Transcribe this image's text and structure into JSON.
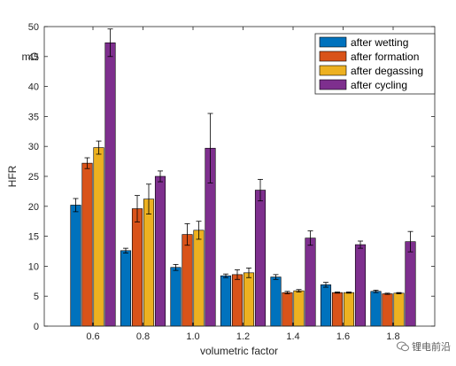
{
  "chart_data": {
    "type": "bar",
    "xlabel": "volumetric factor",
    "ylabel": "HFR",
    "unit_label": "mΩ",
    "categories": [
      "0.6",
      "0.8",
      "1.0",
      "1.2",
      "1.4",
      "1.6",
      "1.8"
    ],
    "ylim": [
      0,
      50
    ],
    "yticks": [
      0,
      5,
      10,
      15,
      20,
      25,
      30,
      35,
      40,
      45,
      50
    ],
    "grid": false,
    "legend_position": "top-right",
    "series": [
      {
        "name": "after wetting",
        "color": "#0072bd",
        "values": [
          20.2,
          12.6,
          9.8,
          8.4,
          8.2,
          6.9,
          5.8
        ],
        "errors": [
          1.1,
          0.4,
          0.5,
          0.3,
          0.4,
          0.4,
          0.2
        ]
      },
      {
        "name": "after formation",
        "color": "#d95319",
        "values": [
          27.2,
          19.6,
          15.3,
          8.6,
          5.6,
          5.6,
          5.4
        ],
        "errors": [
          0.9,
          2.2,
          1.8,
          0.8,
          0.2,
          0.1,
          0.1
        ]
      },
      {
        "name": "after degassing",
        "color": "#edb120",
        "values": [
          29.8,
          21.2,
          16.0,
          8.9,
          5.9,
          5.6,
          5.5
        ],
        "errors": [
          1.1,
          2.5,
          1.5,
          0.8,
          0.2,
          0.1,
          0.1
        ]
      },
      {
        "name": "after cycling",
        "color": "#7e2f8e",
        "values": [
          47.3,
          25.0,
          29.7,
          22.7,
          14.7,
          13.6,
          14.1
        ],
        "errors": [
          2.3,
          0.9,
          5.8,
          1.8,
          1.2,
          0.6,
          1.7
        ]
      }
    ]
  },
  "watermark": {
    "text": "锂电前沿"
  }
}
